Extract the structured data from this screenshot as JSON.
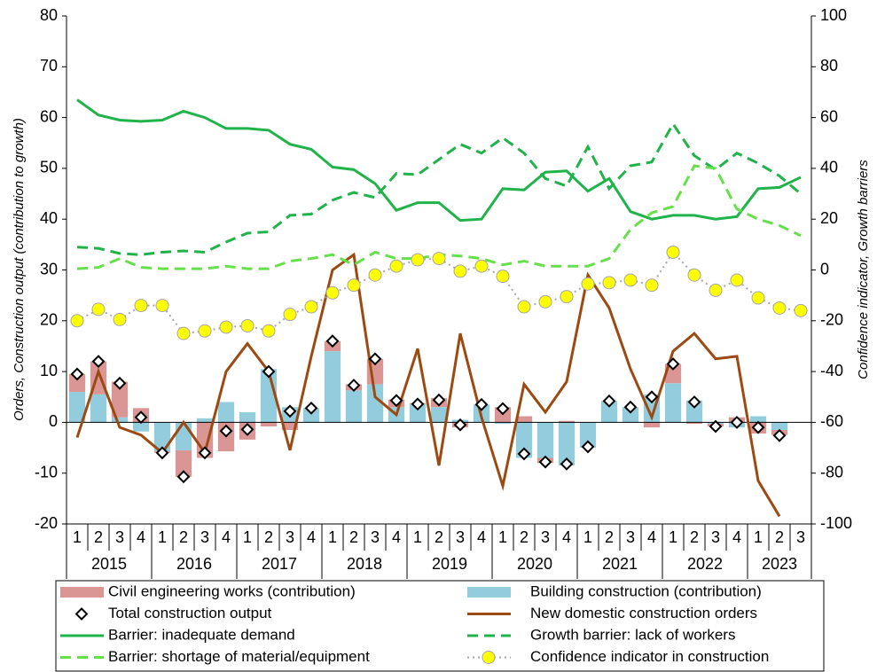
{
  "chart_data": {
    "type": "combo",
    "y_label": "Orders, Construction output (contribution to growth)",
    "y2_label": "Confidence indicator, Growth barriers",
    "categories": [
      "1",
      "2",
      "3",
      "4",
      "1",
      "2",
      "3",
      "4",
      "1",
      "2",
      "3",
      "4",
      "1",
      "2",
      "3",
      "4",
      "1",
      "2",
      "3",
      "4",
      "1",
      "2",
      "3",
      "4",
      "1",
      "2",
      "3",
      "4",
      "1",
      "2",
      "3",
      "4",
      "1",
      "2",
      "3"
    ],
    "groups": [
      "2015",
      "2016",
      "2017",
      "2018",
      "2019",
      "2020",
      "2021",
      "2022",
      "2023"
    ],
    "ylim": [
      -20,
      80
    ],
    "yticks": [
      -20,
      -10,
      0,
      10,
      20,
      30,
      40,
      50,
      60,
      70,
      80
    ],
    "y2lim": [
      -100,
      100
    ],
    "y2ticks": [
      -100,
      -80,
      -60,
      -40,
      -20,
      0,
      20,
      40,
      60,
      80,
      100
    ],
    "series": [
      {
        "name": "Civil engineering works (contribution)",
        "style": "bar",
        "color": "#d99694",
        "values": [
          3.5,
          6.5,
          7,
          2.8,
          -0.3,
          -5.2,
          -7,
          -5.7,
          -3.4,
          -0.8,
          -1.5,
          0,
          2,
          1.2,
          5,
          1.5,
          0.2,
          1.8,
          -1,
          0,
          3,
          1.2,
          -1,
          0.3,
          0,
          0,
          0,
          -1,
          3.8,
          -0.3,
          -0.5,
          1,
          -2.2,
          -1,
          null
        ]
      },
      {
        "name": "Building construction (contribution)",
        "style": "bar",
        "color": "#93cddd",
        "values": [
          6,
          5.5,
          1,
          -1.8,
          -5.7,
          -5.5,
          0.8,
          4,
          2,
          10.5,
          3,
          2.8,
          14,
          6.3,
          7.5,
          3,
          3.6,
          3,
          0.5,
          3.5,
          -0.3,
          -7,
          -7,
          -8.5,
          -5,
          4.2,
          3,
          5.5,
          7.7,
          4.3,
          -0.3,
          -1,
          1.2,
          -1.5,
          null
        ]
      },
      {
        "name": "Total construction output",
        "style": "diamond",
        "color": "#000000",
        "values": [
          9.5,
          12,
          7.7,
          1,
          -6,
          -10.7,
          -6,
          -1.7,
          -1.4,
          10,
          2.2,
          2.8,
          16,
          7.3,
          12.5,
          4.3,
          3.6,
          4.4,
          -0.5,
          3.5,
          2.7,
          -6.2,
          -7.8,
          -8.2,
          -4.8,
          4.2,
          3,
          5,
          11.5,
          4,
          -0.8,
          0,
          -1,
          -2.6,
          null
        ]
      },
      {
        "name": "New domestic construction orders",
        "style": "line",
        "color": "#9c4a12",
        "values": [
          -3,
          10,
          -1,
          -2.5,
          -6,
          0,
          -6,
          10,
          15.5,
          10,
          -5.5,
          13,
          30,
          33,
          5,
          1.5,
          14.5,
          -8.5,
          17.5,
          1,
          -12.5,
          7.5,
          2,
          8,
          29,
          22.5,
          10.5,
          1,
          14,
          17.5,
          12.5,
          13,
          -11.5,
          -18.5,
          null
        ]
      },
      {
        "name": "Barrier: inadequate demand",
        "style": "line",
        "color": "#1fb34a",
        "axis": "y2",
        "values": [
          67,
          61,
          59,
          58.5,
          59,
          62.5,
          60,
          55.7,
          55.7,
          55,
          49.5,
          47.5,
          40.5,
          39.5,
          34,
          23.5,
          26.5,
          26.5,
          19.5,
          20,
          32,
          31.5,
          38.5,
          39,
          31,
          36,
          23,
          20,
          21.5,
          21.5,
          20,
          21,
          32,
          32.5,
          36.5
        ]
      },
      {
        "name": "Growth barrier: lack of workers",
        "style": "dashed",
        "color": "#1fb34a",
        "axis": "y2",
        "values": [
          9,
          8.5,
          6.5,
          6,
          7,
          7.5,
          7,
          11,
          14.5,
          15,
          21.5,
          22,
          27.5,
          30.5,
          28.5,
          38,
          37.5,
          43.5,
          49.5,
          46,
          52,
          46,
          36,
          33,
          48.5,
          32,
          41,
          42.5,
          57.5,
          45,
          39.5,
          46,
          42,
          37,
          30
        ]
      },
      {
        "name": "Barrier: shortage of material/equipment",
        "style": "dashed",
        "color": "#66e04a",
        "axis": "y2",
        "values": [
          0.5,
          1,
          4.5,
          1,
          0.5,
          0.5,
          0.5,
          1.5,
          0.5,
          0.5,
          3.5,
          4.5,
          6,
          2,
          7,
          4.5,
          4.5,
          6,
          5.5,
          4.5,
          2,
          3.5,
          1.5,
          1.5,
          1.5,
          4.5,
          16,
          22.5,
          25,
          41,
          40,
          24,
          20,
          17.5,
          13.5
        ]
      },
      {
        "name": "Confidence indicator in construction",
        "style": "dotted-circle",
        "color": "#a6a6a6",
        "marker_color": "#ffff00",
        "axis": "y2",
        "values": [
          -20,
          -15.5,
          -19.5,
          -14,
          -14,
          -25,
          -24,
          -22.5,
          -22,
          -24,
          -17.5,
          -14.5,
          -9,
          -6,
          -2,
          1.5,
          4,
          4.5,
          -0.5,
          1.5,
          -2.5,
          -14.5,
          -12.5,
          -10.5,
          -5.5,
          -5,
          -4,
          -6,
          7,
          -2,
          -8,
          -4,
          -11,
          -15,
          -16
        ]
      }
    ]
  }
}
